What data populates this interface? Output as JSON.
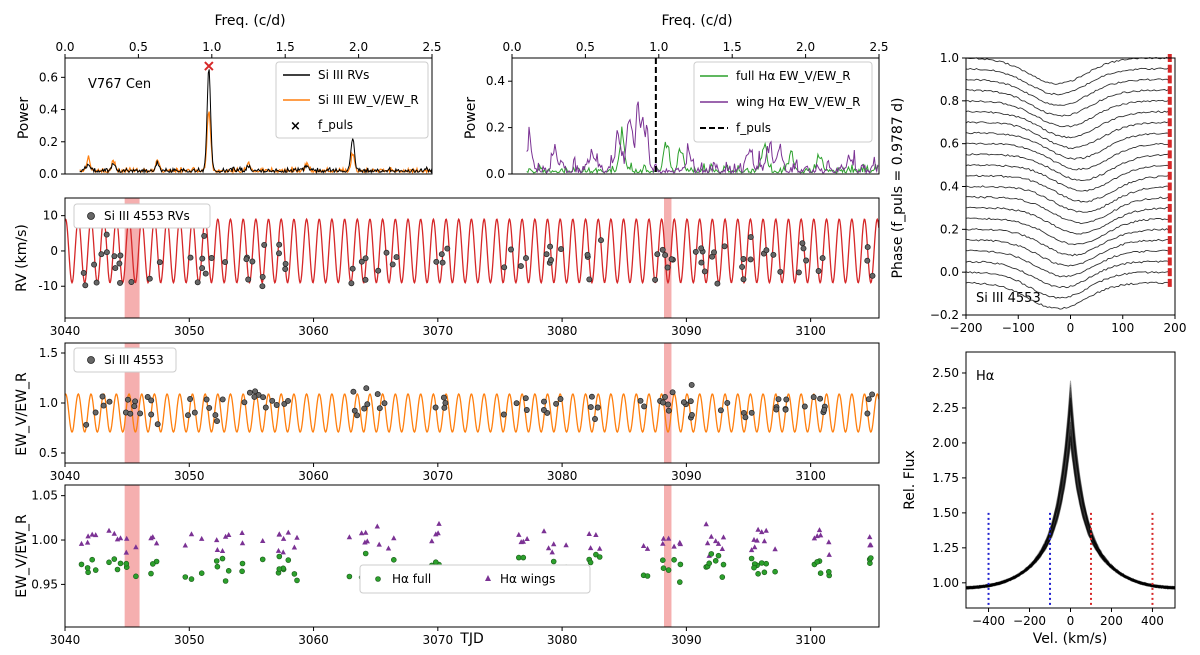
{
  "colors": {
    "black": "#000000",
    "orange": "#ff7f0e",
    "red": "#d62728",
    "green": "#2ca02c",
    "purple": "#7b3294",
    "band": "#f4a6a6",
    "marker_gray": "#666666",
    "blue": "#1f1fcf"
  },
  "chart_data": [
    {
      "id": "periodogram_si",
      "type": "line",
      "xlabel": "Freq. (c/d)",
      "ylabel": "Power",
      "xlim": [
        0,
        2.5
      ],
      "ylim": [
        0,
        0.72
      ],
      "xticks": [
        "0.0",
        "0.5",
        "1.0",
        "1.5",
        "2.0",
        "2.5"
      ],
      "yticks": [
        "0.0",
        "0.2",
        "0.4",
        "0.6"
      ],
      "annotation": "V767 Cen",
      "legend": [
        "Si III RVs",
        "Si III EW_V/EW_R",
        "f_puls"
      ],
      "legend_placement": "top-right",
      "peaks": [
        {
          "f": 0.98,
          "rv": 0.63,
          "ew": 0.37
        },
        {
          "f": 1.96,
          "rv": 0.2,
          "ew": 0.1
        },
        {
          "f": 0.16,
          "rv": 0.04,
          "ew": 0.08
        },
        {
          "f": 0.33,
          "rv": 0.05,
          "ew": 0.06
        },
        {
          "f": 0.63,
          "rv": 0.05,
          "ew": 0.07
        },
        {
          "f": 1.25,
          "rv": 0.03,
          "ew": 0.05
        },
        {
          "f": 1.65,
          "rv": 0.03,
          "ew": 0.05
        }
      ],
      "f_puls_marker": {
        "f": 0.98,
        "power": 0.67
      }
    },
    {
      "id": "periodogram_ha",
      "type": "line",
      "xlabel": "Freq. (c/d)",
      "ylabel": "Power",
      "xlim": [
        0,
        2.5
      ],
      "ylim": [
        0,
        0.5
      ],
      "xticks": [
        "0.0",
        "0.5",
        "1.0",
        "1.5",
        "2.0",
        "2.5"
      ],
      "yticks": [
        "0.0",
        "0.2",
        "0.4"
      ],
      "legend": [
        "full Hα EW_V/EW_R",
        "wing Hα EW_V/EW_R",
        "f_puls"
      ],
      "legend_placement": "top-right",
      "f_puls_line": 0.98,
      "peaks_wing": [
        {
          "f": 0.12,
          "p": 0.13
        },
        {
          "f": 0.3,
          "p": 0.08
        },
        {
          "f": 0.55,
          "p": 0.09
        },
        {
          "f": 0.72,
          "p": 0.18
        },
        {
          "f": 0.8,
          "p": 0.26
        },
        {
          "f": 0.86,
          "p": 0.31
        },
        {
          "f": 0.91,
          "p": 0.22
        },
        {
          "f": 1.2,
          "p": 0.07
        },
        {
          "f": 1.62,
          "p": 0.1
        },
        {
          "f": 1.75,
          "p": 0.12
        },
        {
          "f": 1.82,
          "p": 0.1
        },
        {
          "f": 2.3,
          "p": 0.06
        }
      ],
      "peaks_full": [
        {
          "f": 0.75,
          "p": 0.15
        },
        {
          "f": 1.05,
          "p": 0.14
        },
        {
          "f": 1.15,
          "p": 0.11
        },
        {
          "f": 1.72,
          "p": 0.13
        },
        {
          "f": 1.9,
          "p": 0.09
        },
        {
          "f": 2.1,
          "p": 0.07
        }
      ]
    },
    {
      "id": "rv_time",
      "type": "scatter",
      "xlabel": "",
      "ylabel": "RV (km/s)",
      "xlim": [
        3040,
        3105.5
      ],
      "ylim": [
        -19,
        15
      ],
      "xticks": [
        "3040",
        "3050",
        "3060",
        "3070",
        "3080",
        "3090",
        "3100"
      ],
      "yticks": [
        "-10",
        "0",
        "10"
      ],
      "ytick_values": [
        -10,
        0,
        10
      ],
      "legend": [
        "Si III 4553 RVs"
      ],
      "legend_placement": "top-left",
      "model": {
        "amplitude": 9,
        "freq_cpd": 0.98,
        "offset": 0
      },
      "bands": [
        [
          3044.8,
          3046.0
        ],
        [
          3088.2,
          3088.8
        ]
      ],
      "segments": [
        [
          3041.2,
          3047.8
        ],
        [
          3049.6,
          3053.2
        ],
        [
          3054.2,
          3059.2
        ],
        [
          3062.7,
          3066.8
        ],
        [
          3069.5,
          3071.2
        ],
        [
          3075.3,
          3077.2
        ],
        [
          3078.5,
          3080.6
        ],
        [
          3081.7,
          3083.7
        ],
        [
          3086.2,
          3093.3
        ],
        [
          3094.3,
          3098.3
        ],
        [
          3099.0,
          3101.6
        ],
        [
          3104.5,
          3105.1
        ]
      ],
      "noise": 4,
      "clip": [
        -16,
        11
      ]
    },
    {
      "id": "ew_time",
      "type": "scatter",
      "xlabel": "",
      "ylabel": "EW_V/EW_R",
      "xlim": [
        3040,
        3105.5
      ],
      "ylim": [
        0.4,
        1.6
      ],
      "xticks": [
        "3040",
        "3050",
        "3060",
        "3070",
        "3080",
        "3090",
        "3100"
      ],
      "yticks": [
        "0.5",
        "1.0",
        "1.5"
      ],
      "ytick_values": [
        0.5,
        1.0,
        1.5
      ],
      "legend": [
        "Si III 4553"
      ],
      "legend_placement": "top-left",
      "model": {
        "amplitude": 0.19,
        "freq_cpd": 0.98,
        "offset": 0.9
      },
      "bands": [
        [
          3044.8,
          3046.0
        ],
        [
          3088.2,
          3088.8
        ]
      ],
      "segments": [
        [
          3041.2,
          3047.8
        ],
        [
          3049.6,
          3053.2
        ],
        [
          3054.2,
          3059.2
        ],
        [
          3062.7,
          3066.8
        ],
        [
          3069.5,
          3071.2
        ],
        [
          3075.3,
          3077.2
        ],
        [
          3078.5,
          3080.6
        ],
        [
          3081.7,
          3083.7
        ],
        [
          3086.2,
          3093.3
        ],
        [
          3094.3,
          3098.3
        ],
        [
          3099.0,
          3101.6
        ],
        [
          3104.5,
          3105.1
        ]
      ],
      "noise": 0.12,
      "clip": [
        0.65,
        1.5
      ]
    },
    {
      "id": "ha_time",
      "type": "scatter",
      "xlabel": "TJD",
      "ylabel": "EW_V/EW_R",
      "xlim": [
        3040,
        3105.5
      ],
      "ylim": [
        0.902,
        1.062
      ],
      "xticks": [
        "3040",
        "3050",
        "3060",
        "3070",
        "3080",
        "3090",
        "3100"
      ],
      "yticks": [
        "0.95",
        "1.00",
        "1.05"
      ],
      "ytick_values": [
        0.95,
        1.0,
        1.05
      ],
      "legend": [
        "Hα full",
        "Hα wings"
      ],
      "legend_placement": "bottom-center",
      "bands": [
        [
          3044.8,
          3046.0
        ],
        [
          3088.2,
          3088.8
        ]
      ],
      "segments": [
        [
          3041.2,
          3047.8
        ],
        [
          3049.6,
          3053.2
        ],
        [
          3054.2,
          3059.2
        ],
        [
          3062.7,
          3066.8
        ],
        [
          3069.5,
          3071.2
        ],
        [
          3075.3,
          3077.2
        ],
        [
          3078.5,
          3080.6
        ],
        [
          3081.7,
          3083.7
        ],
        [
          3086.2,
          3093.3
        ],
        [
          3094.3,
          3098.3
        ],
        [
          3099.0,
          3101.6
        ],
        [
          3104.5,
          3105.1
        ]
      ],
      "full_level": 0.97,
      "wing_level": 1.0
    },
    {
      "id": "si_dynamic",
      "type": "line",
      "xlabel": "",
      "ylabel": "Phase (f_puls = 0.9787 d)",
      "xlim": [
        -200,
        200
      ],
      "ylim": [
        -0.2,
        1.0
      ],
      "xticks": [
        "−200",
        "−100",
        "0",
        "100",
        "200"
      ],
      "xtick_values": [
        -200,
        -100,
        0,
        100,
        200
      ],
      "yticks": [
        "−0.2",
        "0.0",
        "0.2",
        "0.4",
        "0.6",
        "0.8",
        "1.0"
      ],
      "ytick_values": [
        -0.2,
        0.0,
        0.2,
        0.4,
        0.6,
        0.8,
        1.0
      ],
      "annotation": "Si III 4553",
      "n_profiles": 22,
      "profile_spacing": 0.05,
      "depth": 0.12,
      "width_kms": 55,
      "phase_marker_velocity": 190
    },
    {
      "id": "ha_profiles",
      "type": "line",
      "xlabel": "Vel. (km/s)",
      "ylabel": "Rel. Flux",
      "xlim": [
        -510,
        510
      ],
      "ylim": [
        0.82,
        2.65
      ],
      "xticks": [
        "−400",
        "−200",
        "0",
        "200",
        "400"
      ],
      "xtick_values": [
        -400,
        -200,
        0,
        200,
        400
      ],
      "yticks": [
        "1.00",
        "1.25",
        "1.50",
        "1.75",
        "2.00",
        "2.25",
        "2.50"
      ],
      "ytick_values": [
        1.0,
        1.25,
        1.5,
        1.75,
        2.0,
        2.25,
        2.5
      ],
      "annotation": "Hα",
      "n_profiles": 60,
      "peak_range": [
        1.95,
        2.5
      ],
      "window_lines": {
        "blue": [
          -400,
          -100
        ],
        "red": [
          100,
          400
        ]
      },
      "window_top": 1.5
    }
  ]
}
